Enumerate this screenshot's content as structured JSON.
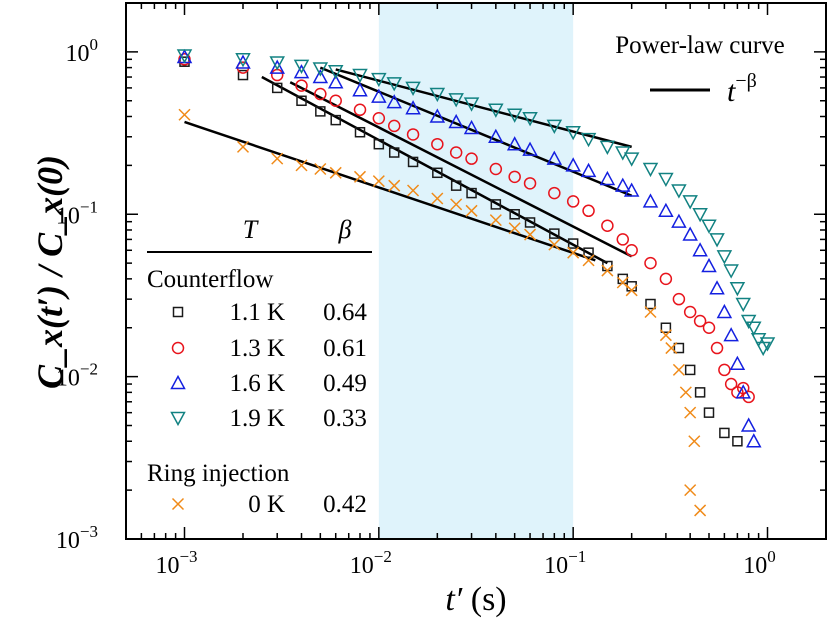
{
  "chart_data": {
    "type": "scatter",
    "title": "",
    "xscale": "log",
    "yscale": "log",
    "xlim": [
      0.0005,
      2.0
    ],
    "ylim": [
      0.001,
      2.0
    ],
    "xlabel": {
      "main": "t′",
      "unit": "(s)"
    },
    "ylabel": {
      "text": "C_x(t′) / C_x(0)"
    },
    "x_ticks": [
      {
        "value": 0.001,
        "base": "10",
        "exp": "−3"
      },
      {
        "value": 0.01,
        "base": "10",
        "exp": "−2"
      },
      {
        "value": 0.1,
        "base": "10",
        "exp": "−1"
      },
      {
        "value": 1,
        "base": "10",
        "exp": "0"
      }
    ],
    "y_ticks": [
      {
        "value": 0.001,
        "base": "10",
        "exp": "−3"
      },
      {
        "value": 0.01,
        "base": "10",
        "exp": "−2"
      },
      {
        "value": 0.1,
        "base": "10",
        "exp": "−1"
      },
      {
        "value": 1,
        "base": "10",
        "exp": "0"
      }
    ],
    "shaded_region": {
      "x_range": [
        0.01,
        0.1
      ],
      "color": "#dff3fb"
    },
    "power_law_annotation": {
      "label": "Power-law curve",
      "formula_base": "t",
      "formula_exp": "−β"
    },
    "table_header": {
      "col_T": "T",
      "col_beta": "β"
    },
    "groups": [
      {
        "label": "Counterflow",
        "series_index": [
          0,
          1,
          2,
          3
        ]
      },
      {
        "label": "Ring injection",
        "series_index": [
          4
        ]
      }
    ],
    "series": [
      {
        "name": "Counterflow 1.1 K",
        "T": "1.1 K",
        "beta": "0.64",
        "marker": "square",
        "color": "#1a1a1a",
        "points": [
          [
            0.001,
            0.87
          ],
          [
            0.002,
            0.72
          ],
          [
            0.003,
            0.6
          ],
          [
            0.004,
            0.5
          ],
          [
            0.005,
            0.43
          ],
          [
            0.006,
            0.38
          ],
          [
            0.008,
            0.32
          ],
          [
            0.01,
            0.27
          ],
          [
            0.012,
            0.24
          ],
          [
            0.015,
            0.21
          ],
          [
            0.02,
            0.18
          ],
          [
            0.025,
            0.15
          ],
          [
            0.03,
            0.135
          ],
          [
            0.04,
            0.115
          ],
          [
            0.05,
            0.1
          ],
          [
            0.06,
            0.089
          ],
          [
            0.08,
            0.076
          ],
          [
            0.1,
            0.066
          ],
          [
            0.12,
            0.058
          ],
          [
            0.15,
            0.048
          ],
          [
            0.18,
            0.04
          ],
          [
            0.2,
            0.036
          ],
          [
            0.25,
            0.028
          ],
          [
            0.3,
            0.02
          ],
          [
            0.35,
            0.015
          ],
          [
            0.4,
            0.011
          ],
          [
            0.45,
            0.008
          ],
          [
            0.5,
            0.006
          ],
          [
            0.6,
            0.0045
          ],
          [
            0.7,
            0.004
          ]
        ],
        "fit": {
          "x": [
            0.0025,
            0.15
          ],
          "y": [
            0.7,
            0.05
          ]
        }
      },
      {
        "name": "Counterflow 1.3 K",
        "T": "1.3 K",
        "beta": "0.61",
        "marker": "circle",
        "color": "#e8141c",
        "points": [
          [
            0.001,
            0.9
          ],
          [
            0.002,
            0.8
          ],
          [
            0.003,
            0.72
          ],
          [
            0.004,
            0.62
          ],
          [
            0.005,
            0.55
          ],
          [
            0.006,
            0.5
          ],
          [
            0.008,
            0.44
          ],
          [
            0.01,
            0.39
          ],
          [
            0.012,
            0.35
          ],
          [
            0.015,
            0.31
          ],
          [
            0.02,
            0.27
          ],
          [
            0.025,
            0.24
          ],
          [
            0.03,
            0.22
          ],
          [
            0.04,
            0.19
          ],
          [
            0.05,
            0.17
          ],
          [
            0.06,
            0.155
          ],
          [
            0.08,
            0.135
          ],
          [
            0.1,
            0.12
          ],
          [
            0.12,
            0.105
          ],
          [
            0.15,
            0.085
          ],
          [
            0.18,
            0.07
          ],
          [
            0.2,
            0.06
          ],
          [
            0.25,
            0.05
          ],
          [
            0.3,
            0.04
          ],
          [
            0.35,
            0.03
          ],
          [
            0.4,
            0.025
          ],
          [
            0.45,
            0.022
          ],
          [
            0.5,
            0.02
          ],
          [
            0.55,
            0.015
          ],
          [
            0.6,
            0.011
          ],
          [
            0.65,
            0.009
          ],
          [
            0.7,
            0.008
          ],
          [
            0.75,
            0.0085
          ],
          [
            0.8,
            0.0075
          ]
        ],
        "fit": {
          "x": [
            0.0035,
            0.2
          ],
          "y": [
            0.65,
            0.055
          ]
        }
      },
      {
        "name": "Counterflow 1.6 K",
        "T": "1.6 K",
        "beta": "0.49",
        "marker": "triangle-up",
        "color": "#1420e0",
        "points": [
          [
            0.001,
            0.93
          ],
          [
            0.002,
            0.86
          ],
          [
            0.003,
            0.8
          ],
          [
            0.004,
            0.75
          ],
          [
            0.005,
            0.7
          ],
          [
            0.006,
            0.65
          ],
          [
            0.008,
            0.58
          ],
          [
            0.01,
            0.53
          ],
          [
            0.012,
            0.49
          ],
          [
            0.015,
            0.45
          ],
          [
            0.02,
            0.4
          ],
          [
            0.025,
            0.37
          ],
          [
            0.03,
            0.34
          ],
          [
            0.04,
            0.3
          ],
          [
            0.05,
            0.27
          ],
          [
            0.06,
            0.25
          ],
          [
            0.08,
            0.22
          ],
          [
            0.1,
            0.2
          ],
          [
            0.12,
            0.185
          ],
          [
            0.15,
            0.165
          ],
          [
            0.18,
            0.15
          ],
          [
            0.2,
            0.14
          ],
          [
            0.25,
            0.12
          ],
          [
            0.3,
            0.105
          ],
          [
            0.35,
            0.09
          ],
          [
            0.4,
            0.075
          ],
          [
            0.45,
            0.06
          ],
          [
            0.5,
            0.048
          ],
          [
            0.55,
            0.035
          ],
          [
            0.6,
            0.025
          ],
          [
            0.65,
            0.018
          ],
          [
            0.7,
            0.012
          ],
          [
            0.75,
            0.008
          ],
          [
            0.8,
            0.005
          ],
          [
            0.85,
            0.004
          ]
        ],
        "fit": {
          "x": [
            0.005,
            0.2
          ],
          "y": [
            0.8,
            0.13
          ]
        }
      },
      {
        "name": "Counterflow 1.9 K",
        "T": "1.9 K",
        "beta": "0.33",
        "marker": "triangle-down",
        "color": "#128282",
        "points": [
          [
            0.001,
            0.95
          ],
          [
            0.002,
            0.9
          ],
          [
            0.003,
            0.86
          ],
          [
            0.004,
            0.82
          ],
          [
            0.005,
            0.79
          ],
          [
            0.006,
            0.76
          ],
          [
            0.008,
            0.72
          ],
          [
            0.01,
            0.68
          ],
          [
            0.012,
            0.64
          ],
          [
            0.015,
            0.6
          ],
          [
            0.02,
            0.55
          ],
          [
            0.025,
            0.51
          ],
          [
            0.03,
            0.48
          ],
          [
            0.04,
            0.44
          ],
          [
            0.05,
            0.41
          ],
          [
            0.06,
            0.39
          ],
          [
            0.08,
            0.35
          ],
          [
            0.1,
            0.32
          ],
          [
            0.12,
            0.29
          ],
          [
            0.15,
            0.26
          ],
          [
            0.18,
            0.24
          ],
          [
            0.2,
            0.22
          ],
          [
            0.25,
            0.19
          ],
          [
            0.3,
            0.165
          ],
          [
            0.35,
            0.14
          ],
          [
            0.4,
            0.12
          ],
          [
            0.45,
            0.1
          ],
          [
            0.5,
            0.085
          ],
          [
            0.55,
            0.07
          ],
          [
            0.6,
            0.055
          ],
          [
            0.65,
            0.045
          ],
          [
            0.7,
            0.035
          ],
          [
            0.75,
            0.028
          ],
          [
            0.8,
            0.022
          ],
          [
            0.85,
            0.02
          ],
          [
            0.9,
            0.017
          ],
          [
            0.95,
            0.015
          ],
          [
            1.0,
            0.016
          ]
        ],
        "fit": {
          "x": [
            0.006,
            0.2
          ],
          "y": [
            0.78,
            0.26
          ]
        }
      },
      {
        "name": "Ring injection 0 K",
        "T": "0 K",
        "beta": "0.42",
        "marker": "x",
        "color": "#f08a18",
        "points": [
          [
            0.001,
            0.41
          ],
          [
            0.002,
            0.26
          ],
          [
            0.003,
            0.22
          ],
          [
            0.004,
            0.2
          ],
          [
            0.005,
            0.19
          ],
          [
            0.006,
            0.18
          ],
          [
            0.008,
            0.17
          ],
          [
            0.01,
            0.16
          ],
          [
            0.012,
            0.15
          ],
          [
            0.015,
            0.14
          ],
          [
            0.02,
            0.125
          ],
          [
            0.025,
            0.115
          ],
          [
            0.03,
            0.105
          ],
          [
            0.04,
            0.092
          ],
          [
            0.05,
            0.082
          ],
          [
            0.06,
            0.075
          ],
          [
            0.08,
            0.065
          ],
          [
            0.1,
            0.058
          ],
          [
            0.12,
            0.052
          ],
          [
            0.15,
            0.045
          ],
          [
            0.18,
            0.038
          ],
          [
            0.2,
            0.034
          ],
          [
            0.25,
            0.025
          ],
          [
            0.3,
            0.018
          ],
          [
            0.32,
            0.015
          ],
          [
            0.35,
            0.011
          ],
          [
            0.38,
            0.008
          ],
          [
            0.4,
            0.006
          ],
          [
            0.42,
            0.004
          ],
          [
            0.45,
            0.0015
          ],
          [
            0.4,
            0.002
          ]
        ],
        "fit": {
          "x": [
            0.001,
            0.13
          ],
          "y": [
            0.37,
            0.052
          ]
        }
      }
    ]
  }
}
